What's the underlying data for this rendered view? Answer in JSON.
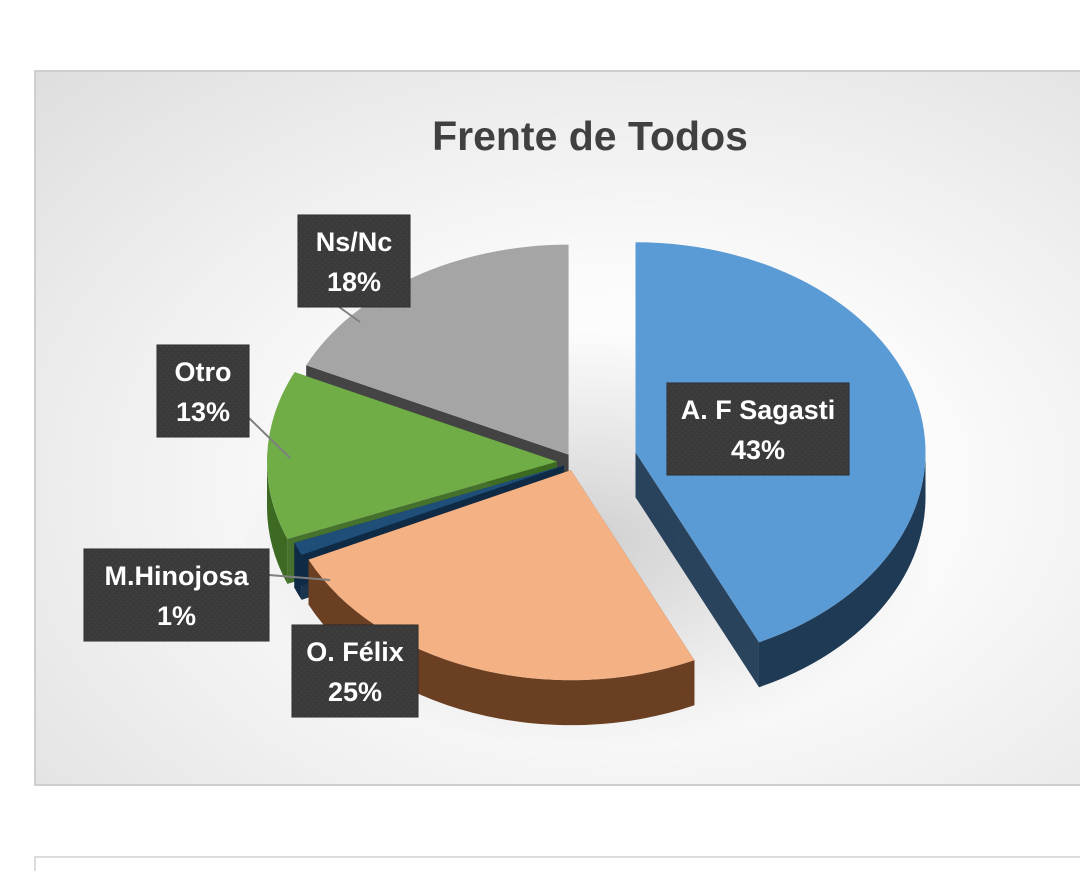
{
  "chart_data": {
    "type": "pie",
    "title": "Frente de Todos",
    "style": "3d-exploded",
    "legend": "none",
    "categories": [
      "A. F Sagasti",
      "O. Félix",
      "M.Hinojosa",
      "Otro",
      "Ns/Nc"
    ],
    "values": [
      43,
      25,
      1,
      13,
      18
    ],
    "value_labels": [
      "43%",
      "25%",
      "1%",
      "13%",
      "18%"
    ],
    "colors": [
      "#5b9bd5",
      "#f4b183",
      "#1f4e79",
      "#70ad47",
      "#a5a5a5"
    ],
    "side_colors": [
      "#1f3a55",
      "#6b3f22",
      "#0f2a45",
      "#3d6a22",
      "#3a3a3a"
    ]
  }
}
